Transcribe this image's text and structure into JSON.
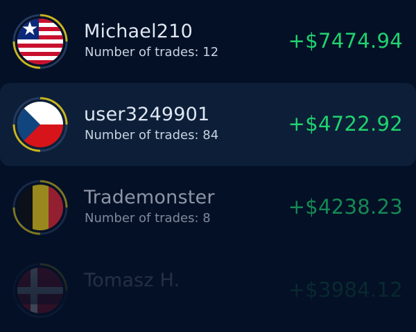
{
  "leaderboard": {
    "accent_gain": "#20d36f",
    "ring_segment_color": "#c9b51f",
    "rows": [
      {
        "name": "Michael210",
        "trades_label": "Number of trades:",
        "trades": "12",
        "amount": "+$7474.94",
        "flag": "liberia-flag-icon",
        "highlighted": false
      },
      {
        "name": "user3249901",
        "trades_label": "Number of trades:",
        "trades": "84",
        "amount": "+$4722.92",
        "flag": "czech-flag-icon",
        "highlighted": true
      },
      {
        "name": "Trademonster",
        "trades_label": "Number of trades:",
        "trades": "8",
        "amount": "+$4238.23",
        "flag": "belgium-flag-icon",
        "highlighted": false
      },
      {
        "name": "Tomasz H.",
        "amount": "+$3984.12",
        "flag": "denmark-flag-icon",
        "highlighted": false
      }
    ]
  }
}
